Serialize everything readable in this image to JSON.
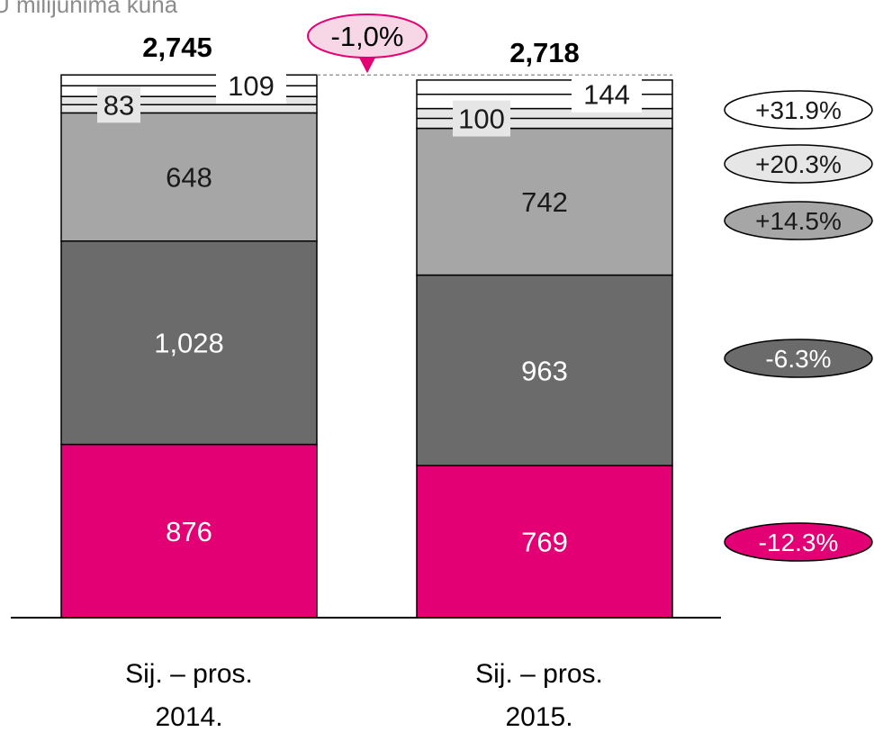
{
  "subtitle": "U milijunima kuna",
  "chart_data": {
    "type": "bar",
    "stacked": true,
    "categories": [
      "Sij. – pros. 2014.",
      "Sij. – pros. 2015."
    ],
    "category_lines": [
      [
        "Sij. – pros.",
        "2014."
      ],
      [
        "Sij. – pros.",
        "2015."
      ]
    ],
    "totals": [
      2745,
      2718
    ],
    "total_labels": [
      "2,745",
      "2,718"
    ],
    "change_label": "-1,0%",
    "series": [
      {
        "values": [
          876,
          769
        ],
        "labels": [
          "876",
          "769"
        ],
        "color": "#e20074",
        "text_color": "#ffffff",
        "change": "-12.3%"
      },
      {
        "values": [
          1028,
          963
        ],
        "labels": [
          "1,028",
          "963"
        ],
        "color": "#6b6b6b",
        "text_color": "#ffffff",
        "change": "-6.3%"
      },
      {
        "values": [
          648,
          742
        ],
        "labels": [
          "648",
          "742"
        ],
        "color": "#a6a6a6",
        "text_color": "#1a1a1a",
        "change": "+14.5%"
      },
      {
        "values": [
          83,
          100
        ],
        "labels": [
          "83",
          "100"
        ],
        "color": "#e6e6e6",
        "text_color": "#1a1a1a",
        "change": "+20.3%"
      },
      {
        "values": [
          109,
          144
        ],
        "labels": [
          "109",
          "144"
        ],
        "color": "#ffffff",
        "text_color": "#1a1a1a",
        "change": "+31.9%"
      }
    ]
  }
}
